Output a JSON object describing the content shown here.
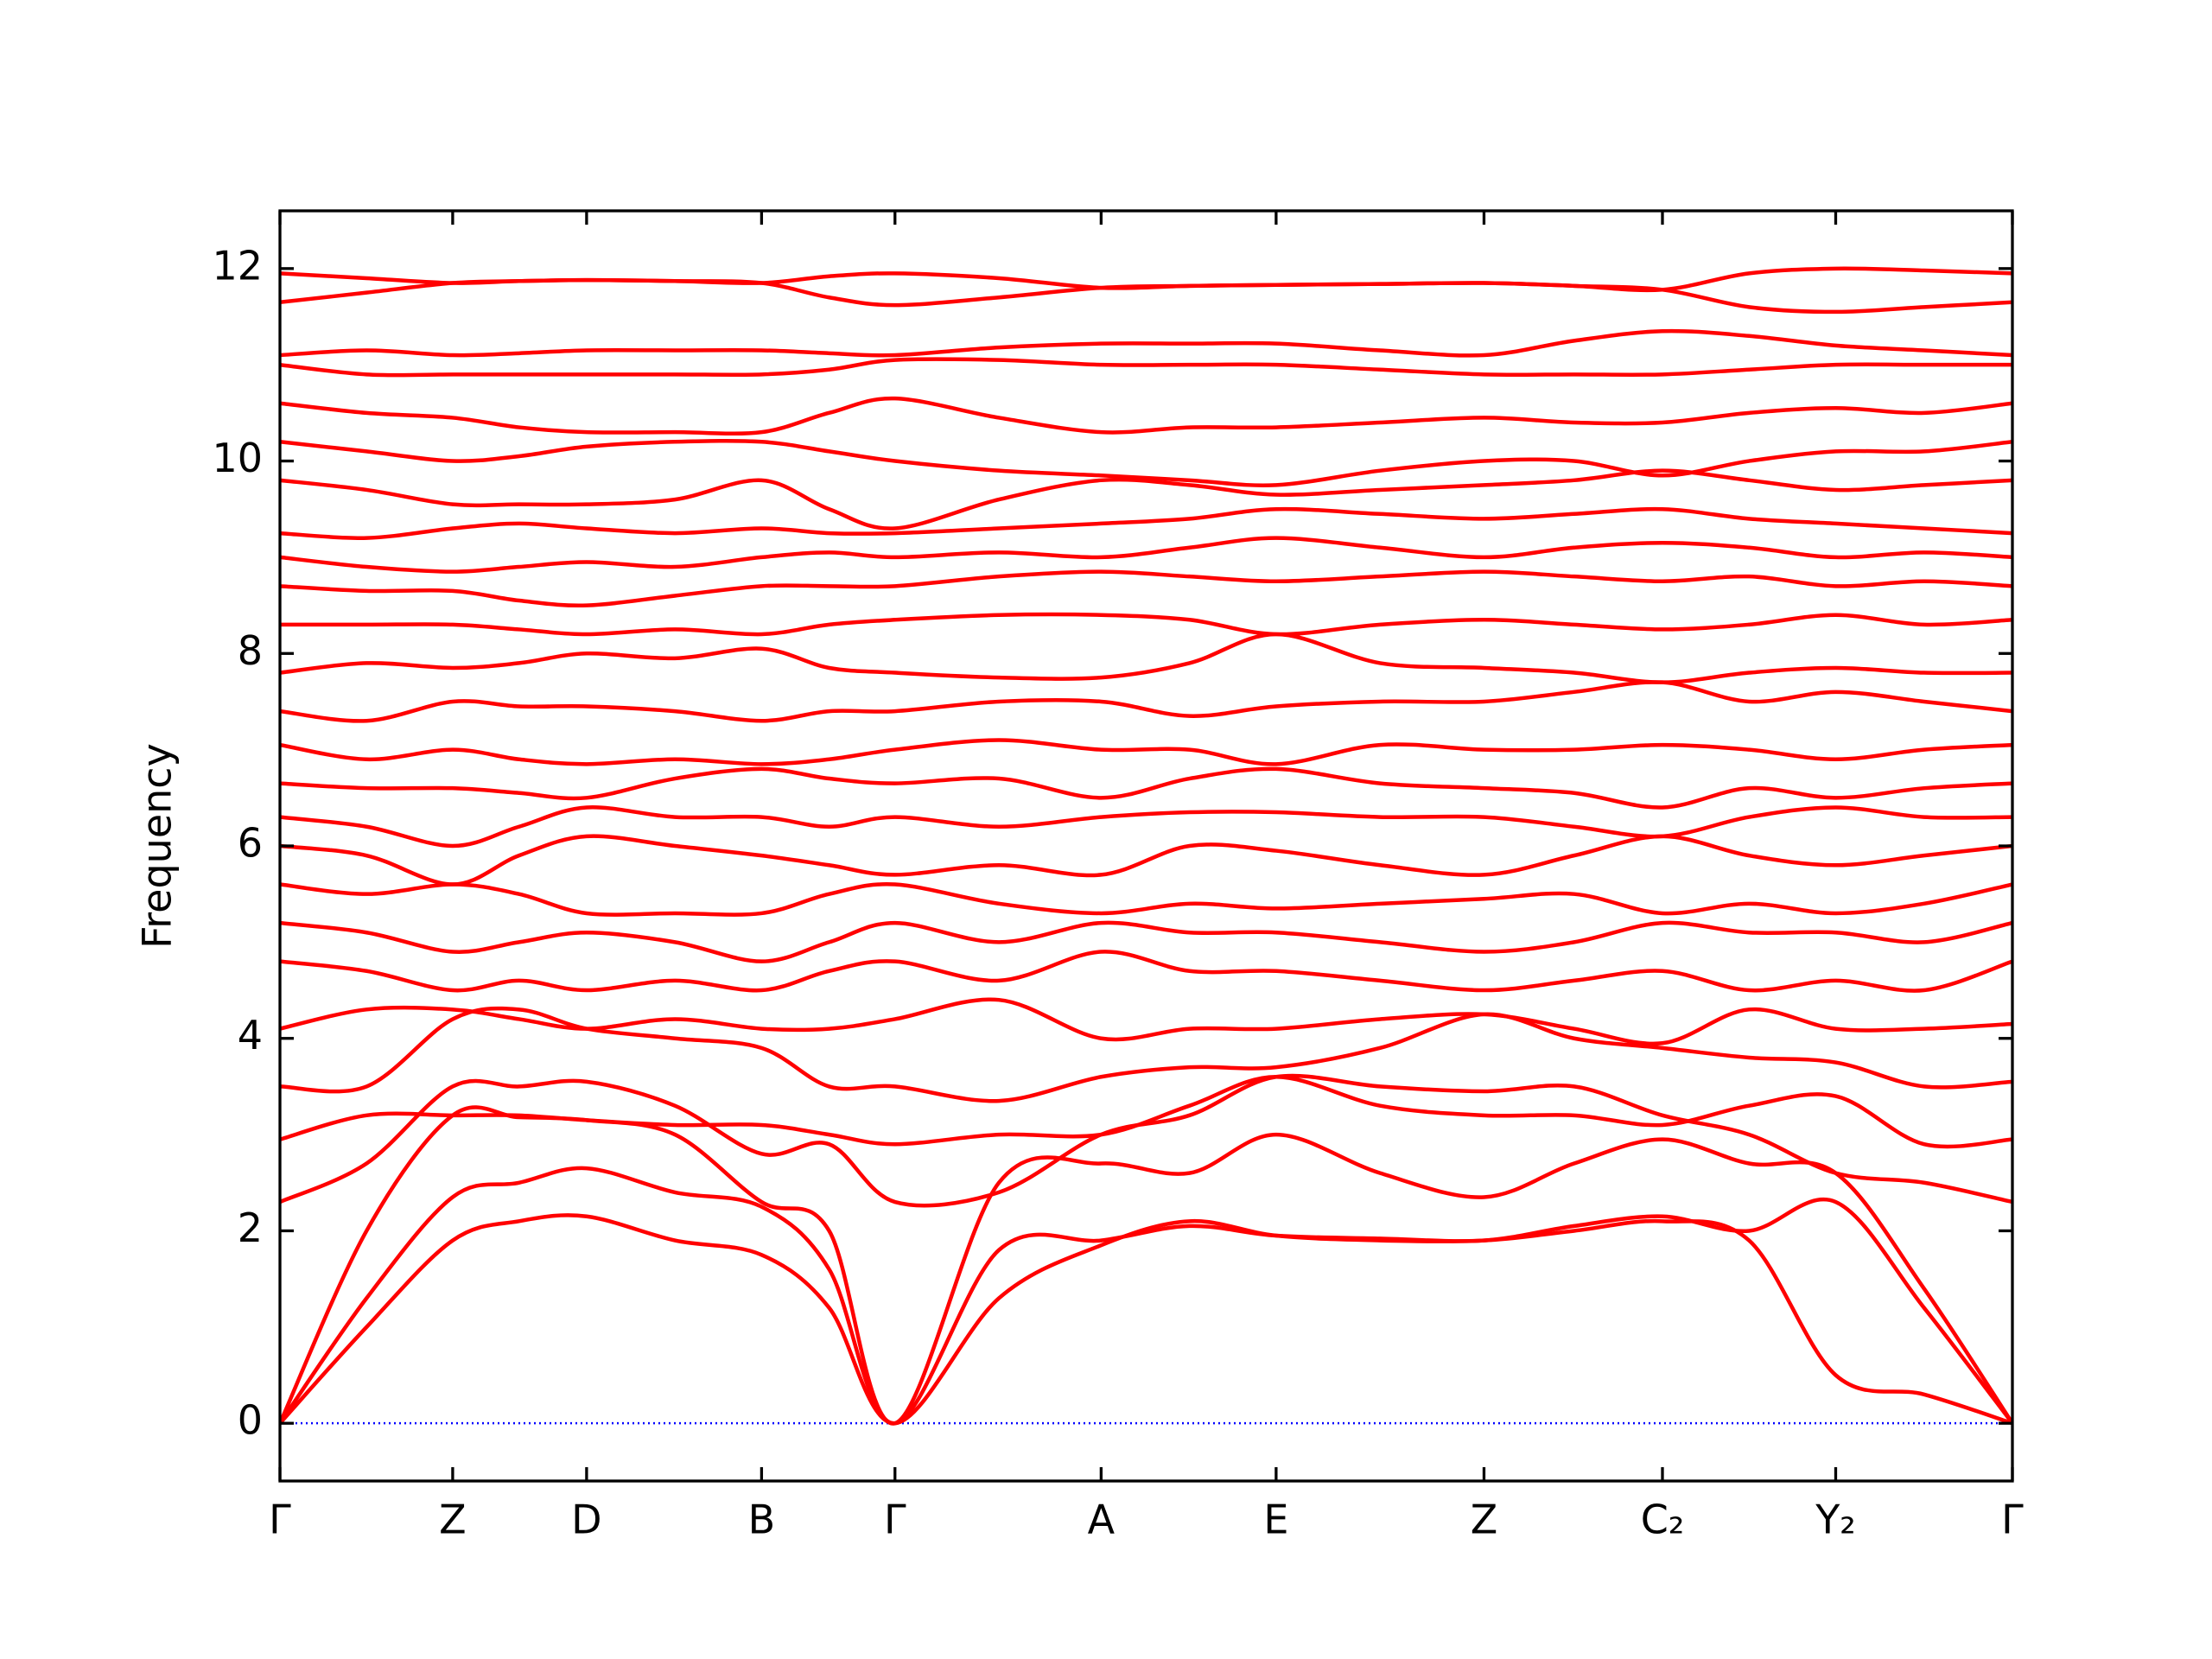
{
  "chart_data": {
    "type": "line",
    "ylabel": "Frequency",
    "color": "#ff0000",
    "zero_line": {
      "value": 0,
      "color": "#0000ff"
    },
    "xlim": [
      0,
      1
    ],
    "xticks": [
      {
        "value": 0,
        "label": "Γ"
      },
      {
        "value": 0.0997,
        "label": "Z"
      },
      {
        "value": 0.177,
        "label": "D"
      },
      {
        "value": 0.278,
        "label": "B"
      },
      {
        "value": 0.355,
        "label": "Γ"
      },
      {
        "value": 0.474,
        "label": "A"
      },
      {
        "value": 0.575,
        "label": "E"
      },
      {
        "value": 0.695,
        "label": "Z"
      },
      {
        "value": 0.798,
        "label": "C₂"
      },
      {
        "value": 0.898,
        "label": "Y₂"
      },
      {
        "value": 1,
        "label": "Γ"
      }
    ],
    "ylim": [
      -0.6,
      12.6
    ],
    "yticks": [
      0,
      2,
      4,
      6,
      8,
      10,
      12
    ],
    "x": [
      0,
      0.05,
      0.0997,
      0.138,
      0.177,
      0.228,
      0.278,
      0.317,
      0.355,
      0.415,
      0.474,
      0.525,
      0.575,
      0.635,
      0.695,
      0.747,
      0.798,
      0.848,
      0.898,
      0.949,
      1
    ],
    "series": [
      {
        "values": [
          0,
          1.0,
          1.9,
          2.1,
          2.15,
          1.9,
          1.75,
          1.2,
          0,
          1.3,
          1.85,
          2.1,
          1.95,
          1.9,
          1.9,
          2.0,
          2.1,
          1.9,
          0.5,
          0.3,
          0
        ]
      },
      {
        "values": [
          0,
          1.3,
          2.35,
          2.5,
          2.65,
          2.4,
          2.25,
          1.6,
          0,
          1.8,
          1.9,
          2.05,
          1.95,
          1.92,
          1.9,
          2.05,
          2.15,
          2.0,
          2.3,
          1.2,
          0
        ]
      },
      {
        "values": [
          0,
          2.0,
          3.2,
          3.18,
          3.15,
          3.0,
          2.3,
          2.0,
          0,
          2.5,
          2.7,
          2.6,
          3.0,
          2.6,
          2.35,
          2.7,
          2.95,
          2.7,
          2.6,
          1.4,
          0
        ]
      },
      {
        "values": [
          2.3,
          2.7,
          3.5,
          3.5,
          3.55,
          3.3,
          2.8,
          2.9,
          2.3,
          2.4,
          3.0,
          3.2,
          3.6,
          3.5,
          3.45,
          3.5,
          3.2,
          3.0,
          2.6,
          2.5,
          2.3
        ]
      },
      {
        "values": [
          2.95,
          3.2,
          3.2,
          3.2,
          3.15,
          3.1,
          3.1,
          3.0,
          2.9,
          3.0,
          3.0,
          3.3,
          3.6,
          3.3,
          3.2,
          3.2,
          3.1,
          3.3,
          3.4,
          2.9,
          2.95
        ]
      },
      {
        "values": [
          3.5,
          3.5,
          4.2,
          4.3,
          4.1,
          4.0,
          3.9,
          3.5,
          3.5,
          3.35,
          3.6,
          3.7,
          3.7,
          3.9,
          4.25,
          4.0,
          3.9,
          3.8,
          3.75,
          3.5,
          3.55
        ]
      },
      {
        "values": [
          4.1,
          4.3,
          4.3,
          4.2,
          4.1,
          4.2,
          4.1,
          4.1,
          4.2,
          4.4,
          4.0,
          4.1,
          4.1,
          4.2,
          4.25,
          4.1,
          3.95,
          4.3,
          4.1,
          4.1,
          4.15
        ]
      },
      {
        "values": [
          4.8,
          4.7,
          4.5,
          4.6,
          4.5,
          4.6,
          4.5,
          4.7,
          4.8,
          4.6,
          4.9,
          4.7,
          4.7,
          4.6,
          4.5,
          4.6,
          4.7,
          4.5,
          4.6,
          4.5,
          4.8
        ]
      },
      {
        "values": [
          5.2,
          5.1,
          4.9,
          5.0,
          5.1,
          5.0,
          4.8,
          5.0,
          5.2,
          5.0,
          5.2,
          5.1,
          5.1,
          5.0,
          4.9,
          5.0,
          5.2,
          5.1,
          5.1,
          5.0,
          5.2
        ]
      },
      {
        "values": [
          5.6,
          5.5,
          5.6,
          5.5,
          5.3,
          5.3,
          5.3,
          5.5,
          5.6,
          5.4,
          5.3,
          5.4,
          5.35,
          5.4,
          5.45,
          5.5,
          5.3,
          5.4,
          5.3,
          5.4,
          5.6
        ]
      },
      {
        "values": [
          6.0,
          5.9,
          5.6,
          5.9,
          6.1,
          6.0,
          5.9,
          5.8,
          5.7,
          5.8,
          5.7,
          6.0,
          5.95,
          5.8,
          5.7,
          5.9,
          6.1,
          5.9,
          5.8,
          5.9,
          6.0
        ]
      },
      {
        "values": [
          6.3,
          6.2,
          6.0,
          6.2,
          6.4,
          6.3,
          6.3,
          6.2,
          6.3,
          6.2,
          6.3,
          6.35,
          6.35,
          6.3,
          6.3,
          6.2,
          6.1,
          6.3,
          6.4,
          6.3,
          6.3
        ]
      },
      {
        "values": [
          6.65,
          6.6,
          6.6,
          6.55,
          6.5,
          6.7,
          6.8,
          6.7,
          6.65,
          6.7,
          6.5,
          6.7,
          6.8,
          6.65,
          6.6,
          6.55,
          6.4,
          6.6,
          6.5,
          6.6,
          6.65
        ]
      },
      {
        "values": [
          7.05,
          6.9,
          7.0,
          6.9,
          6.85,
          6.9,
          6.85,
          6.9,
          7.0,
          7.1,
          7.0,
          7.0,
          6.85,
          7.05,
          7.0,
          7.0,
          7.05,
          7.0,
          6.9,
          7.0,
          7.05
        ]
      },
      {
        "values": [
          7.4,
          7.3,
          7.5,
          7.45,
          7.45,
          7.4,
          7.3,
          7.4,
          7.4,
          7.5,
          7.5,
          7.35,
          7.45,
          7.5,
          7.5,
          7.6,
          7.7,
          7.5,
          7.6,
          7.5,
          7.4
        ]
      },
      {
        "values": [
          7.8,
          7.9,
          7.85,
          7.9,
          8.0,
          7.95,
          8.05,
          7.85,
          7.8,
          7.75,
          7.75,
          7.9,
          8.2,
          7.9,
          7.85,
          7.8,
          7.7,
          7.8,
          7.85,
          7.8,
          7.8
        ]
      },
      {
        "values": [
          8.3,
          8.3,
          8.3,
          8.25,
          8.2,
          8.25,
          8.2,
          8.3,
          8.35,
          8.4,
          8.4,
          8.35,
          8.2,
          8.3,
          8.35,
          8.3,
          8.25,
          8.3,
          8.4,
          8.3,
          8.35
        ]
      },
      {
        "values": [
          8.7,
          8.65,
          8.65,
          8.55,
          8.5,
          8.6,
          8.7,
          8.7,
          8.7,
          8.8,
          8.85,
          8.8,
          8.75,
          8.8,
          8.85,
          8.8,
          8.75,
          8.8,
          8.7,
          8.75,
          8.7
        ]
      },
      {
        "values": [
          9.0,
          8.9,
          8.85,
          8.9,
          8.95,
          8.9,
          9.0,
          9.05,
          9.0,
          9.05,
          9.0,
          9.1,
          9.2,
          9.1,
          9.0,
          9.1,
          9.15,
          9.1,
          9.0,
          9.05,
          9.0
        ]
      },
      {
        "values": [
          9.25,
          9.2,
          9.3,
          9.35,
          9.3,
          9.25,
          9.3,
          9.25,
          9.25,
          9.3,
          9.35,
          9.4,
          9.5,
          9.45,
          9.4,
          9.45,
          9.5,
          9.4,
          9.35,
          9.3,
          9.25
        ]
      },
      {
        "values": [
          9.8,
          9.7,
          9.55,
          9.55,
          9.55,
          9.6,
          9.8,
          9.5,
          9.3,
          9.6,
          9.8,
          9.75,
          9.65,
          9.7,
          9.75,
          9.8,
          9.9,
          9.8,
          9.7,
          9.75,
          9.8
        ]
      },
      {
        "values": [
          10.2,
          10.1,
          10.0,
          10.05,
          10.15,
          10.2,
          10.2,
          10.1,
          10.0,
          9.9,
          9.85,
          9.8,
          9.75,
          9.9,
          10.0,
          10.0,
          9.85,
          10.0,
          10.1,
          10.1,
          10.2
        ]
      },
      {
        "values": [
          10.6,
          10.5,
          10.45,
          10.35,
          10.3,
          10.3,
          10.3,
          10.5,
          10.65,
          10.45,
          10.3,
          10.35,
          10.35,
          10.4,
          10.45,
          10.4,
          10.4,
          10.5,
          10.55,
          10.5,
          10.6
        ]
      },
      {
        "values": [
          11.0,
          10.9,
          10.9,
          10.9,
          10.9,
          10.9,
          10.9,
          10.95,
          11.05,
          11.05,
          11.0,
          11.0,
          11.0,
          10.95,
          10.9,
          10.9,
          10.9,
          10.95,
          11.0,
          11.0,
          11.0
        ]
      },
      {
        "values": [
          11.1,
          11.15,
          11.1,
          11.12,
          11.15,
          11.15,
          11.15,
          11.12,
          11.1,
          11.18,
          11.22,
          11.22,
          11.22,
          11.15,
          11.1,
          11.25,
          11.35,
          11.3,
          11.2,
          11.15,
          11.1
        ]
      },
      {
        "values": [
          11.65,
          11.75,
          11.85,
          11.87,
          11.88,
          11.87,
          11.85,
          11.7,
          11.62,
          11.7,
          11.8,
          11.82,
          11.83,
          11.84,
          11.85,
          11.82,
          11.78,
          11.6,
          11.55,
          11.6,
          11.65
        ]
      },
      {
        "values": [
          11.95,
          11.9,
          11.85,
          11.87,
          11.88,
          11.87,
          11.85,
          11.92,
          11.95,
          11.9,
          11.8,
          11.82,
          11.83,
          11.84,
          11.85,
          11.82,
          11.78,
          11.95,
          12.0,
          11.98,
          11.95
        ]
      }
    ]
  }
}
